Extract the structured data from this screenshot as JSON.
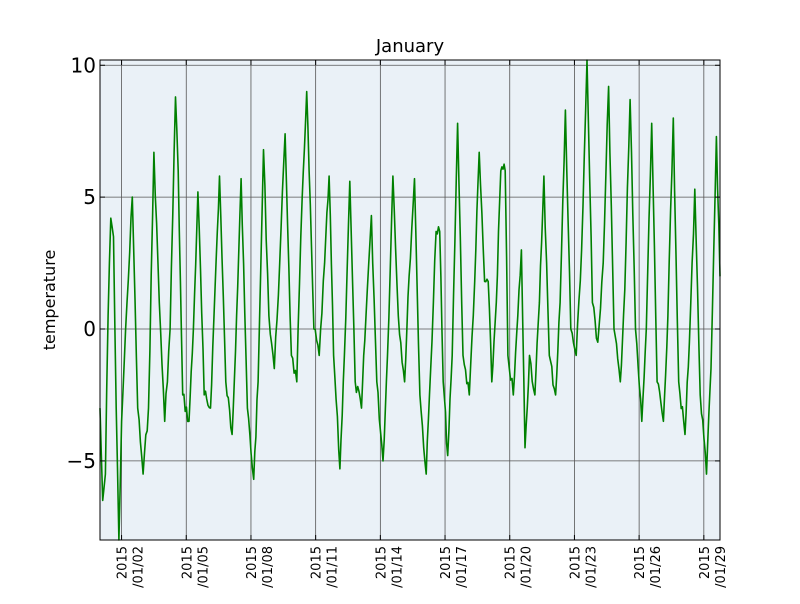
{
  "chart_data": {
    "type": "line",
    "title": "January",
    "xlabel": "",
    "ylabel": "temperature",
    "x_ticks": [
      {
        "date": "2015/01/02",
        "label": [
          "2015",
          "/01/02"
        ]
      },
      {
        "date": "2015/01/05",
        "label": [
          "2015",
          "/01/05"
        ]
      },
      {
        "date": "2015/01/08",
        "label": [
          "2015",
          "/01/08"
        ]
      },
      {
        "date": "2015/01/11",
        "label": [
          "2015",
          "/01/11"
        ]
      },
      {
        "date": "2015/01/14",
        "label": [
          "2015",
          "/01/14"
        ]
      },
      {
        "date": "2015/01/17",
        "label": [
          "2015",
          "/01/17"
        ]
      },
      {
        "date": "2015/01/20",
        "label": [
          "2015",
          "/01/20"
        ]
      },
      {
        "date": "2015/01/23",
        "label": [
          "2015",
          "/01/23"
        ]
      },
      {
        "date": "2015/01/26",
        "label": [
          "2015",
          "/01/26"
        ]
      },
      {
        "date": "2015/01/29",
        "label": [
          "2015",
          "/01/29"
        ]
      }
    ],
    "y_ticks": [
      "10",
      "5",
      "0",
      "−5"
    ],
    "y_tick_values": [
      10,
      5,
      0,
      -5
    ],
    "xlim": [
      "2015/01/01 00:00",
      "2015/01/29 18:00"
    ],
    "ylim": [
      -8,
      10.2
    ],
    "grid": true,
    "colors": {
      "line": "#008000",
      "plot_bg": "#eaf1f7",
      "grid": "#555555"
    },
    "series": [
      {
        "values": [
          [
            "2015/01/01 00:00",
            -3.0
          ],
          [
            "2015/01/01 03:00",
            -6.5
          ],
          [
            "2015/01/01 06:00",
            -5.5
          ],
          [
            "2015/01/01 09:00",
            0.5
          ],
          [
            "2015/01/01 12:00",
            4.2
          ],
          [
            "2015/01/01 15:00",
            3.5
          ],
          [
            "2015/01/01 18:00",
            -3.0
          ],
          [
            "2015/01/01 21:00",
            -8.0
          ],
          [
            "2015/01/02 00:00",
            -3.5
          ],
          [
            "2015/01/02 06:00",
            1.0
          ],
          [
            "2015/01/02 12:00",
            5.0
          ],
          [
            "2015/01/02 18:00",
            -3.0
          ],
          [
            "2015/01/03 00:00",
            -5.5
          ],
          [
            "2015/01/03 06:00",
            -3.0
          ],
          [
            "2015/01/03 12:00",
            6.7
          ],
          [
            "2015/01/03 18:00",
            1.0
          ],
          [
            "2015/01/04 00:00",
            -3.5
          ],
          [
            "2015/01/04 06:00",
            0.0
          ],
          [
            "2015/01/04 12:00",
            8.8
          ],
          [
            "2015/01/04 15:00",
            6.0
          ],
          [
            "2015/01/04 20:00",
            -2.5
          ],
          [
            "2015/01/05 03:00",
            -3.5
          ],
          [
            "2015/01/05 08:00",
            0.0
          ],
          [
            "2015/01/05 13:00",
            5.2
          ],
          [
            "2015/01/05 20:00",
            -2.5
          ],
          [
            "2015/01/06 03:00",
            -3.0
          ],
          [
            "2015/01/06 08:00",
            1.5
          ],
          [
            "2015/01/06 13:00",
            5.8
          ],
          [
            "2015/01/06 20:00",
            -2.0
          ],
          [
            "2015/01/07 03:00",
            -4.0
          ],
          [
            "2015/01/07 08:00",
            0.5
          ],
          [
            "2015/01/07 13:00",
            5.7
          ],
          [
            "2015/01/07 20:00",
            -3.0
          ],
          [
            "2015/01/08 03:00",
            -5.7
          ],
          [
            "2015/01/08 08:00",
            -2.0
          ],
          [
            "2015/01/08 14:00",
            6.8
          ],
          [
            "2015/01/08 20:00",
            0.5
          ],
          [
            "2015/01/09 02:00",
            -1.5
          ],
          [
            "2015/01/09 08:00",
            2.5
          ],
          [
            "2015/01/09 14:00",
            7.4
          ],
          [
            "2015/01/09 21:00",
            -1.0
          ],
          [
            "2015/01/10 03:00",
            -2.0
          ],
          [
            "2015/01/10 09:00",
            5.0
          ],
          [
            "2015/01/10 14:00",
            9.0
          ],
          [
            "2015/01/10 22:00",
            0.0
          ],
          [
            "2015/01/11 04:00",
            -1.0
          ],
          [
            "2015/01/11 10:00",
            2.5
          ],
          [
            "2015/01/11 15:00",
            5.8
          ],
          [
            "2015/01/11 20:00",
            -1.0
          ],
          [
            "2015/01/12 03:00",
            -5.3
          ],
          [
            "2015/01/12 08:00",
            -1.0
          ],
          [
            "2015/01/12 14:00",
            5.6
          ],
          [
            "2015/01/12 20:00",
            -2.0
          ],
          [
            "2015/01/13 03:00",
            -3.0
          ],
          [
            "2015/01/13 08:00",
            0.5
          ],
          [
            "2015/01/13 14:00",
            4.3
          ],
          [
            "2015/01/13 20:00",
            -2.0
          ],
          [
            "2015/01/14 03:00",
            -5.0
          ],
          [
            "2015/01/14 08:00",
            -1.0
          ],
          [
            "2015/01/14 14:00",
            5.8
          ],
          [
            "2015/01/14 20:00",
            0.5
          ],
          [
            "2015/01/15 03:00",
            -2.0
          ],
          [
            "2015/01/15 08:00",
            2.0
          ],
          [
            "2015/01/15 14:00",
            5.7
          ],
          [
            "2015/01/15 20:00",
            -2.5
          ],
          [
            "2015/01/16 03:00",
            -5.5
          ],
          [
            "2015/01/16 08:00",
            -1.5
          ],
          [
            "2015/01/16 14:00",
            3.7
          ],
          [
            "2015/01/16 18:00",
            3.7
          ],
          [
            "2015/01/16 22:00",
            -2.0
          ],
          [
            "2015/01/17 03:00",
            -4.8
          ],
          [
            "2015/01/17 08:00",
            -1.0
          ],
          [
            "2015/01/17 14:00",
            7.8
          ],
          [
            "2015/01/17 20:00",
            -1.0
          ],
          [
            "2015/01/18 03:00",
            -2.5
          ],
          [
            "2015/01/18 09:00",
            1.8
          ],
          [
            "2015/01/18 14:00",
            6.7
          ],
          [
            "2015/01/18 20:00",
            1.8
          ],
          [
            "2015/01/19 00:00",
            1.8
          ],
          [
            "2015/01/19 04:00",
            -2.0
          ],
          [
            "2015/01/19 09:00",
            1.0
          ],
          [
            "2015/01/19 14:00",
            6.0
          ],
          [
            "2015/01/19 19:00",
            6.0
          ],
          [
            "2015/01/19 22:00",
            -1.0
          ],
          [
            "2015/01/20 04:00",
            -2.5
          ],
          [
            "2015/01/20 09:00",
            0.5
          ],
          [
            "2015/01/20 13:00",
            3.0
          ],
          [
            "2015/01/20 17:00",
            -4.5
          ],
          [
            "2015/01/20 22:00",
            -1.0
          ],
          [
            "2015/01/21 04:00",
            -2.5
          ],
          [
            "2015/01/21 09:00",
            1.0
          ],
          [
            "2015/01/21 14:00",
            5.8
          ],
          [
            "2015/01/21 20:00",
            -1.0
          ],
          [
            "2015/01/22 03:00",
            -2.5
          ],
          [
            "2015/01/22 08:00",
            1.0
          ],
          [
            "2015/01/22 14:00",
            8.3
          ],
          [
            "2015/01/22 20:00",
            0.0
          ],
          [
            "2015/01/23 02:00",
            -1.0
          ],
          [
            "2015/01/23 08:00",
            3.0
          ],
          [
            "2015/01/23 14:00",
            10.2
          ],
          [
            "2015/01/23 20:00",
            1.0
          ],
          [
            "2015/01/24 02:00",
            -0.5
          ],
          [
            "2015/01/24 08:00",
            2.5
          ],
          [
            "2015/01/24 14:00",
            9.2
          ],
          [
            "2015/01/24 20:00",
            0.0
          ],
          [
            "2015/01/25 03:00",
            -2.0
          ],
          [
            "2015/01/25 08:00",
            1.5
          ],
          [
            "2015/01/25 14:00",
            8.7
          ],
          [
            "2015/01/25 20:00",
            0.0
          ],
          [
            "2015/01/26 03:00",
            -3.5
          ],
          [
            "2015/01/26 08:00",
            0.0
          ],
          [
            "2015/01/26 14:00",
            7.8
          ],
          [
            "2015/01/26 20:00",
            -2.0
          ],
          [
            "2015/01/27 03:00",
            -3.5
          ],
          [
            "2015/01/27 08:00",
            0.5
          ],
          [
            "2015/01/27 14:00",
            8.0
          ],
          [
            "2015/01/27 20:00",
            -2.0
          ],
          [
            "2015/01/28 03:00",
            -4.0
          ],
          [
            "2015/01/28 08:00",
            -0.5
          ],
          [
            "2015/01/28 14:00",
            5.3
          ],
          [
            "2015/01/28 20:00",
            -2.5
          ],
          [
            "2015/01/29 03:00",
            -5.5
          ],
          [
            "2015/01/29 08:00",
            -1.5
          ],
          [
            "2015/01/29 14:00",
            7.3
          ],
          [
            "2015/01/29 18:00",
            2.0
          ]
        ]
      }
    ]
  }
}
